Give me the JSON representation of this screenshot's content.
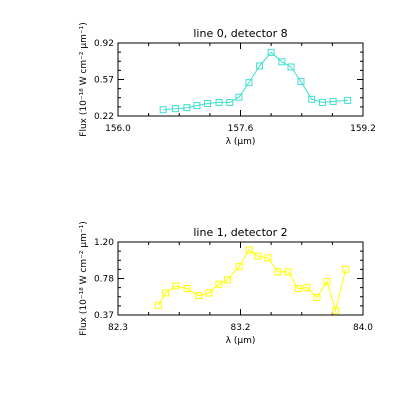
{
  "chart_data": [
    {
      "type": "line",
      "title": "line 0, detector 8",
      "xlabel": "λ (μm)",
      "ylabel": "Flux (10⁻¹⁸ W cm⁻² μm⁻¹)",
      "xlim": [
        156.0,
        159.2
      ],
      "ylim": [
        0.22,
        0.92
      ],
      "x_ticks": [
        "156.0",
        "157.6",
        "159.2"
      ],
      "y_ticks": [
        "0.22",
        "0.57",
        "0.92"
      ],
      "color": "#40e0d0",
      "marker": "square",
      "series": [
        {
          "x": [
            156.59,
            156.75,
            156.9,
            157.03,
            157.17,
            157.32,
            157.46,
            157.58,
            157.71,
            157.85,
            158.0,
            158.14,
            158.26,
            158.39,
            158.53,
            158.67,
            158.81,
            159.0
          ],
          "y": [
            0.28,
            0.29,
            0.3,
            0.32,
            0.34,
            0.35,
            0.35,
            0.4,
            0.54,
            0.7,
            0.83,
            0.74,
            0.69,
            0.55,
            0.38,
            0.35,
            0.36,
            0.37
          ]
        }
      ]
    },
    {
      "type": "line",
      "title": "line 1, detector 2",
      "xlabel": "λ (μm)",
      "ylabel": "Flux (10⁻¹⁸ W cm⁻² μm⁻¹)",
      "xlim": [
        82.3,
        84.0
      ],
      "ylim": [
        0.37,
        1.2
      ],
      "x_ticks": [
        "82.3",
        "83.2",
        "84.0"
      ],
      "y_ticks": [
        "0.37",
        "0.78",
        "1.20"
      ],
      "color": "#ffff00",
      "marker": "square",
      "series": [
        {
          "x": [
            82.58,
            82.63,
            82.7,
            82.78,
            82.86,
            82.93,
            83.0,
            83.06,
            83.14,
            83.21,
            83.27,
            83.34,
            83.41,
            83.48,
            83.55,
            83.61,
            83.68,
            83.75,
            83.81,
            83.88
          ],
          "y": [
            0.48,
            0.62,
            0.7,
            0.67,
            0.59,
            0.62,
            0.72,
            0.77,
            0.92,
            1.11,
            1.04,
            1.02,
            0.86,
            0.86,
            0.67,
            0.68,
            0.57,
            0.75,
            0.42,
            0.89
          ]
        }
      ]
    }
  ]
}
